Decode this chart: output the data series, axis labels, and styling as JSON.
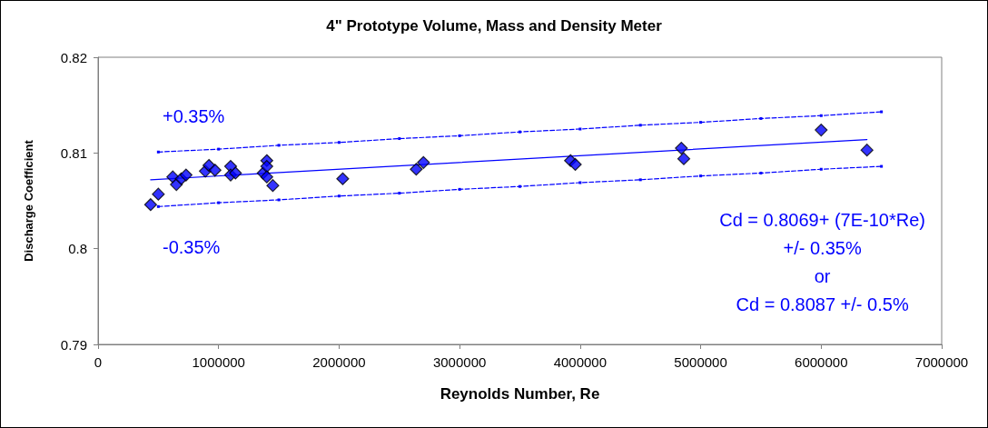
{
  "chart_data": {
    "type": "scatter",
    "title": "4\" Prototype Volume, Mass and Density Meter",
    "xlabel": "Reynolds Number, Re",
    "ylabel": "Discharge Coefficient",
    "xlim": [
      0,
      7000000
    ],
    "xticks": [
      0,
      1000000,
      2000000,
      3000000,
      4000000,
      5000000,
      6000000,
      7000000
    ],
    "ylim": [
      0.79,
      0.82
    ],
    "yticks": [
      0.79,
      0.8,
      0.81,
      0.82
    ],
    "grid": false,
    "marker": "diamond",
    "series": [
      {
        "color": "#0000ff",
        "x": [
          436000,
          500000,
          620000,
          650000,
          690000,
          730000,
          890000,
          920000,
          970000,
          1100000,
          1100000,
          1140000,
          1370000,
          1400000,
          1400000,
          1400000,
          1450000,
          2030000,
          2640000,
          2700000,
          3920000,
          3960000,
          4840000,
          4860000,
          6000000,
          6380000
        ],
        "values": [
          0.8046,
          0.8057,
          0.8075,
          0.8067,
          0.8073,
          0.8077,
          0.8081,
          0.8087,
          0.8082,
          0.8086,
          0.8077,
          0.8079,
          0.8079,
          0.8092,
          0.8086,
          0.8075,
          0.8066,
          0.8073,
          0.8083,
          0.809,
          0.8092,
          0.8088,
          0.8105,
          0.8094,
          0.8124,
          0.8103
        ]
      },
      {
        "type": "line",
        "color": "#0000ff",
        "marker": "none",
        "line_style": "solid",
        "x": [
          436000,
          6380000
        ],
        "values": [
          0.8072,
          0.8114
        ]
      },
      {
        "type": "line",
        "color": "#0000ff",
        "marker": "square",
        "line_style": "dashed",
        "x": [
          500000,
          1000000,
          1500000,
          2000000,
          2500000,
          3000000,
          3500000,
          4000000,
          4500000,
          5000000,
          5500000,
          6000000,
          6500000
        ],
        "values": [
          0.8101,
          0.8104,
          0.8108,
          0.8111,
          0.8115,
          0.8118,
          0.8122,
          0.8125,
          0.8129,
          0.8132,
          0.8136,
          0.8139,
          0.8143
        ]
      },
      {
        "type": "line",
        "color": "#0000ff",
        "marker": "square",
        "line_style": "dashed",
        "x": [
          500000,
          1000000,
          1500000,
          2000000,
          2500000,
          3000000,
          3500000,
          4000000,
          4500000,
          5000000,
          5500000,
          6000000,
          6500000
        ],
        "values": [
          0.8044,
          0.8048,
          0.8051,
          0.8055,
          0.8058,
          0.8062,
          0.8065,
          0.8069,
          0.8072,
          0.8076,
          0.8079,
          0.8083,
          0.8086
        ]
      }
    ],
    "annotations": [
      "+0.35%",
      "-0.35%",
      "Cd = 0.8069+ (7E-10*Re)\n+/- 0.35%\nor\nCd = 0.8087 +/- 0.5%"
    ]
  }
}
